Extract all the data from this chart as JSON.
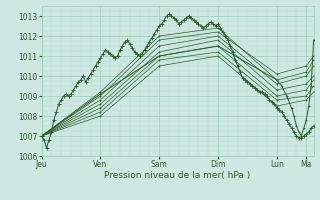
{
  "background_color": "#cce8e0",
  "plot_bg_color": "#cce8e0",
  "grid_major_color": "#99ccbb",
  "grid_minor_color": "#b8ddd4",
  "line_color": "#2d5a2d",
  "ylim": [
    1006,
    1013.5
  ],
  "yticks": [
    1006,
    1007,
    1008,
    1009,
    1010,
    1011,
    1012,
    1013
  ],
  "xlabel": "Pression niveau de la mer( hPa )",
  "xlabel_color": "#2d5a2d",
  "xtick_labels": [
    "Jeu",
    "Ven",
    "Sam",
    "Dim",
    "Lun",
    "Ma"
  ],
  "xtick_positions": [
    0,
    48,
    96,
    144,
    192,
    216
  ],
  "total_hours": 222,
  "series": [
    {
      "points": [
        [
          0,
          1007.0
        ],
        [
          2,
          1006.8
        ],
        [
          4,
          1006.4
        ],
        [
          6,
          1006.8
        ],
        [
          8,
          1007.2
        ],
        [
          10,
          1007.8
        ],
        [
          12,
          1008.2
        ],
        [
          14,
          1008.6
        ],
        [
          16,
          1008.8
        ],
        [
          18,
          1009.0
        ],
        [
          20,
          1009.1
        ],
        [
          22,
          1009.0
        ],
        [
          24,
          1009.1
        ],
        [
          26,
          1009.3
        ],
        [
          28,
          1009.5
        ],
        [
          30,
          1009.7
        ],
        [
          32,
          1009.8
        ],
        [
          34,
          1010.0
        ],
        [
          36,
          1009.7
        ],
        [
          38,
          1009.9
        ],
        [
          40,
          1010.1
        ],
        [
          42,
          1010.3
        ],
        [
          44,
          1010.5
        ],
        [
          46,
          1010.7
        ],
        [
          48,
          1010.9
        ],
        [
          50,
          1011.1
        ],
        [
          52,
          1011.3
        ],
        [
          54,
          1011.2
        ],
        [
          56,
          1011.1
        ],
        [
          58,
          1011.0
        ],
        [
          60,
          1010.9
        ],
        [
          62,
          1011.0
        ],
        [
          64,
          1011.3
        ],
        [
          66,
          1011.5
        ],
        [
          68,
          1011.7
        ],
        [
          70,
          1011.8
        ],
        [
          72,
          1011.6
        ],
        [
          74,
          1011.4
        ],
        [
          76,
          1011.2
        ],
        [
          78,
          1011.1
        ],
        [
          80,
          1011.0
        ],
        [
          82,
          1011.1
        ],
        [
          84,
          1011.3
        ],
        [
          86,
          1011.5
        ],
        [
          88,
          1011.7
        ],
        [
          90,
          1011.9
        ],
        [
          92,
          1012.1
        ],
        [
          94,
          1012.3
        ],
        [
          96,
          1012.5
        ],
        [
          98,
          1012.6
        ],
        [
          100,
          1012.8
        ],
        [
          102,
          1013.0
        ],
        [
          104,
          1013.1
        ],
        [
          106,
          1013.0
        ],
        [
          108,
          1012.9
        ],
        [
          110,
          1012.8
        ],
        [
          112,
          1012.6
        ],
        [
          114,
          1012.7
        ],
        [
          116,
          1012.8
        ],
        [
          118,
          1012.9
        ],
        [
          120,
          1013.0
        ],
        [
          122,
          1012.9
        ],
        [
          124,
          1012.8
        ],
        [
          126,
          1012.7
        ],
        [
          128,
          1012.6
        ],
        [
          130,
          1012.5
        ],
        [
          132,
          1012.4
        ],
        [
          134,
          1012.5
        ],
        [
          136,
          1012.6
        ],
        [
          138,
          1012.7
        ],
        [
          140,
          1012.6
        ],
        [
          142,
          1012.5
        ],
        [
          144,
          1012.6
        ],
        [
          146,
          1012.4
        ],
        [
          148,
          1012.2
        ],
        [
          150,
          1012.0
        ],
        [
          152,
          1011.8
        ],
        [
          154,
          1011.5
        ],
        [
          156,
          1011.2
        ],
        [
          158,
          1010.8
        ],
        [
          160,
          1010.5
        ],
        [
          162,
          1010.2
        ],
        [
          164,
          1009.9
        ],
        [
          166,
          1009.8
        ],
        [
          168,
          1009.7
        ],
        [
          170,
          1009.6
        ],
        [
          172,
          1009.5
        ],
        [
          174,
          1009.4
        ],
        [
          176,
          1009.3
        ],
        [
          178,
          1009.2
        ],
        [
          180,
          1009.2
        ],
        [
          182,
          1009.1
        ],
        [
          184,
          1009.0
        ],
        [
          186,
          1008.8
        ],
        [
          188,
          1008.7
        ],
        [
          190,
          1008.6
        ],
        [
          192,
          1008.4
        ],
        [
          194,
          1008.3
        ],
        [
          196,
          1008.2
        ],
        [
          198,
          1008.0
        ],
        [
          200,
          1007.8
        ],
        [
          202,
          1007.6
        ],
        [
          204,
          1007.4
        ],
        [
          206,
          1007.2
        ],
        [
          208,
          1007.0
        ],
        [
          210,
          1006.9
        ],
        [
          212,
          1006.9
        ],
        [
          214,
          1007.0
        ],
        [
          216,
          1007.1
        ],
        [
          218,
          1007.2
        ],
        [
          220,
          1007.4
        ],
        [
          222,
          1007.5
        ]
      ]
    },
    {
      "points": [
        [
          0,
          1007.0
        ],
        [
          48,
          1009.2
        ],
        [
          96,
          1012.0
        ],
        [
          144,
          1012.4
        ],
        [
          192,
          1009.8
        ],
        [
          216,
          1010.2
        ],
        [
          222,
          1010.8
        ]
      ]
    },
    {
      "points": [
        [
          0,
          1007.0
        ],
        [
          48,
          1009.0
        ],
        [
          96,
          1011.8
        ],
        [
          144,
          1012.2
        ],
        [
          192,
          1010.1
        ],
        [
          216,
          1010.5
        ],
        [
          222,
          1011.0
        ]
      ]
    },
    {
      "points": [
        [
          0,
          1007.0
        ],
        [
          48,
          1008.8
        ],
        [
          96,
          1011.5
        ],
        [
          144,
          1012.0
        ],
        [
          192,
          1009.6
        ],
        [
          216,
          1010.0
        ],
        [
          222,
          1010.5
        ]
      ]
    },
    {
      "points": [
        [
          0,
          1007.0
        ],
        [
          48,
          1008.6
        ],
        [
          96,
          1011.2
        ],
        [
          144,
          1011.8
        ],
        [
          192,
          1009.3
        ],
        [
          216,
          1009.6
        ],
        [
          222,
          1010.0
        ]
      ]
    },
    {
      "points": [
        [
          0,
          1007.0
        ],
        [
          48,
          1008.4
        ],
        [
          96,
          1011.0
        ],
        [
          144,
          1011.5
        ],
        [
          192,
          1009.0
        ],
        [
          216,
          1009.3
        ],
        [
          222,
          1009.8
        ]
      ]
    },
    {
      "points": [
        [
          0,
          1007.0
        ],
        [
          48,
          1008.2
        ],
        [
          96,
          1010.8
        ],
        [
          144,
          1011.2
        ],
        [
          192,
          1008.8
        ],
        [
          216,
          1009.0
        ],
        [
          222,
          1009.5
        ]
      ]
    },
    {
      "points": [
        [
          0,
          1007.0
        ],
        [
          48,
          1008.0
        ],
        [
          96,
          1010.5
        ],
        [
          144,
          1011.0
        ],
        [
          192,
          1008.5
        ],
        [
          216,
          1008.8
        ],
        [
          222,
          1009.2
        ]
      ]
    },
    {
      "points": [
        [
          0,
          1007.0
        ],
        [
          48,
          1009.1
        ],
        [
          96,
          1011.0
        ],
        [
          144,
          1011.5
        ],
        [
          192,
          1009.8
        ],
        [
          196,
          1009.5
        ],
        [
          200,
          1009.0
        ],
        [
          204,
          1008.4
        ],
        [
          206,
          1008.0
        ],
        [
          208,
          1007.5
        ],
        [
          210,
          1007.2
        ],
        [
          212,
          1007.0
        ],
        [
          214,
          1007.4
        ],
        [
          216,
          1007.8
        ],
        [
          218,
          1008.5
        ],
        [
          220,
          1009.5
        ],
        [
          222,
          1011.8
        ]
      ]
    }
  ]
}
